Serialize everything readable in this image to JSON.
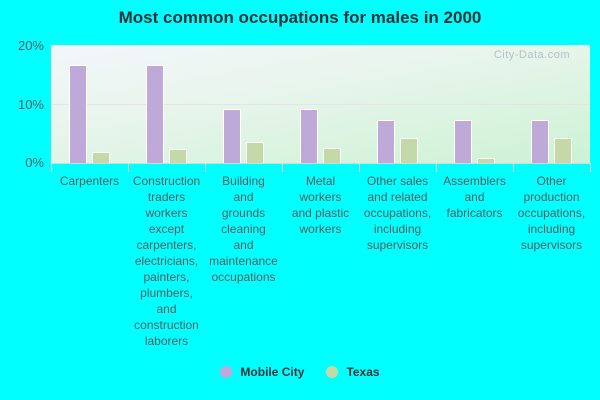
{
  "title": "Most common occupations for males in 2000",
  "watermark": "City-Data.com",
  "y_ticks": [
    "20%",
    "10%",
    "0%"
  ],
  "legend": [
    {
      "label": "Mobile City",
      "color": "#bfa9d9"
    },
    {
      "label": "Texas",
      "color": "#c5d9a8"
    }
  ],
  "chart_data": {
    "type": "bar",
    "title": "Most common occupations for males in 2000",
    "xlabel": "",
    "ylabel": "",
    "ylim": [
      0,
      20
    ],
    "y_tick_labels": [
      "0%",
      "10%",
      "20%"
    ],
    "grid": true,
    "legend_position": "bottom",
    "categories": [
      "Carpenters",
      "Construction traders workers except carpenters, electricians, painters, plumbers, and construction laborers",
      "Building and grounds cleaning and maintenance occupations",
      "Metal workers and plastic workers",
      "Other sales and related occupations, including supervisors",
      "Assemblers and fabricators",
      "Other production occupations, including supervisors"
    ],
    "series": [
      {
        "name": "Mobile City",
        "color": "#bfa9d9",
        "values": [
          16.6,
          16.6,
          9.2,
          9.2,
          7.3,
          7.3,
          7.3
        ]
      },
      {
        "name": "Texas",
        "color": "#c5d9a8",
        "values": [
          1.9,
          2.4,
          3.6,
          2.5,
          4.2,
          0.9,
          4.2
        ]
      }
    ]
  },
  "x_labels": [
    [
      "Carpenters"
    ],
    [
      "Construction",
      "traders",
      "workers",
      "except",
      "carpenters,",
      "electricians,",
      "painters,",
      "plumbers,",
      "and",
      "construction",
      "laborers"
    ],
    [
      "Building",
      "and",
      "grounds",
      "cleaning",
      "and",
      "maintenance",
      "occupations"
    ],
    [
      "Metal",
      "workers",
      "and plastic",
      "workers"
    ],
    [
      "Other sales",
      "and related",
      "occupations,",
      "including",
      "supervisors"
    ],
    [
      "Assemblers",
      "and",
      "fabricators"
    ],
    [
      "Other",
      "production",
      "occupations,",
      "including",
      "supervisors"
    ]
  ]
}
